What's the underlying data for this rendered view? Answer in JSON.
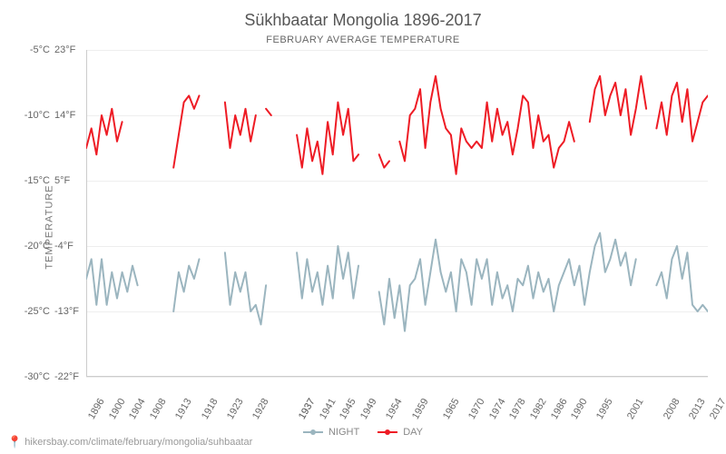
{
  "title": "Sükhbaatar Mongolia 1896-2017",
  "subtitle": "FEBRUARY AVERAGE TEMPERATURE",
  "y_axis_label": "TEMPERATURE",
  "attribution": "hikersbay.com/climate/february/mongolia/suhbaatar",
  "chart": {
    "type": "line",
    "background_color": "#ffffff",
    "grid_color": "#eeeeee",
    "axis_color": "#cccccc",
    "text_color": "#666666",
    "title_fontsize": 18,
    "subtitle_fontsize": 11,
    "tick_fontsize": 11,
    "ylim_c": [
      -30,
      -5
    ],
    "y_ticks": [
      {
        "c": "-5°C",
        "f": "23°F",
        "v": -5
      },
      {
        "c": "-10°C",
        "f": "14°F",
        "v": -10
      },
      {
        "c": "-15°C",
        "f": "5°F",
        "v": -15
      },
      {
        "c": "-20°C",
        "f": "-4°F",
        "v": -20
      },
      {
        "c": "-25°C",
        "f": "-13°F",
        "v": -25
      },
      {
        "c": "-30°C",
        "f": "-22°F",
        "v": -30
      }
    ],
    "x_ticks": [
      "1896",
      "1900",
      "1904",
      "1908",
      "1913",
      "1918",
      "1923",
      "1928",
      "1937",
      "1937",
      "1941",
      "1945",
      "1949",
      "1954",
      "1959",
      "1965",
      "1970",
      "1974",
      "1978",
      "1982",
      "1986",
      "1990",
      "1995",
      "2001",
      "2008",
      "2013",
      "2017"
    ],
    "series": {
      "night": {
        "label": "NIGHT",
        "color": "#9bb5bf",
        "line_width": 2,
        "marker": "circle",
        "segments": [
          [
            [
              1896,
              -22.5
            ],
            [
              1897,
              -21
            ],
            [
              1898,
              -24.5
            ],
            [
              1899,
              -21
            ],
            [
              1900,
              -24.5
            ],
            [
              1901,
              -22
            ],
            [
              1902,
              -24
            ],
            [
              1903,
              -22
            ],
            [
              1904,
              -23.5
            ],
            [
              1905,
              -21.5
            ],
            [
              1906,
              -23
            ]
          ],
          [
            [
              1913,
              -25
            ],
            [
              1914,
              -22
            ],
            [
              1915,
              -23.5
            ],
            [
              1916,
              -21.5
            ],
            [
              1917,
              -22.5
            ],
            [
              1918,
              -21
            ]
          ],
          [
            [
              1923,
              -20.5
            ],
            [
              1924,
              -24.5
            ],
            [
              1925,
              -22
            ],
            [
              1926,
              -23.5
            ],
            [
              1927,
              -22
            ],
            [
              1928,
              -25
            ],
            [
              1929,
              -24.5
            ],
            [
              1930,
              -26
            ],
            [
              1931,
              -23
            ]
          ],
          [
            [
              1937,
              -20.5
            ],
            [
              1938,
              -24
            ],
            [
              1939,
              -21
            ],
            [
              1940,
              -23.5
            ],
            [
              1941,
              -22
            ],
            [
              1942,
              -24.5
            ],
            [
              1943,
              -21.5
            ],
            [
              1944,
              -24
            ],
            [
              1945,
              -20
            ],
            [
              1946,
              -22.5
            ],
            [
              1947,
              -20.5
            ],
            [
              1948,
              -24
            ],
            [
              1949,
              -21.5
            ]
          ],
          [
            [
              1953,
              -23.5
            ],
            [
              1954,
              -26
            ],
            [
              1955,
              -22.5
            ],
            [
              1956,
              -25.5
            ],
            [
              1957,
              -23
            ],
            [
              1958,
              -26.5
            ],
            [
              1959,
              -23
            ],
            [
              1960,
              -22.5
            ],
            [
              1961,
              -21
            ],
            [
              1962,
              -24.5
            ],
            [
              1963,
              -22
            ],
            [
              1964,
              -19.5
            ],
            [
              1965,
              -22
            ],
            [
              1966,
              -23.5
            ],
            [
              1967,
              -22
            ],
            [
              1968,
              -25
            ],
            [
              1969,
              -21
            ],
            [
              1970,
              -22
            ],
            [
              1971,
              -24.5
            ],
            [
              1972,
              -21
            ],
            [
              1973,
              -22.5
            ],
            [
              1974,
              -21
            ],
            [
              1975,
              -24.5
            ],
            [
              1976,
              -22
            ],
            [
              1977,
              -24
            ],
            [
              1978,
              -23
            ],
            [
              1979,
              -25
            ],
            [
              1980,
              -22.5
            ],
            [
              1981,
              -23
            ],
            [
              1982,
              -21.5
            ],
            [
              1983,
              -24
            ],
            [
              1984,
              -22
            ],
            [
              1985,
              -23.5
            ],
            [
              1986,
              -22.5
            ],
            [
              1987,
              -25
            ],
            [
              1988,
              -23
            ],
            [
              1989,
              -22
            ],
            [
              1990,
              -21
            ],
            [
              1991,
              -23
            ],
            [
              1992,
              -21.5
            ],
            [
              1993,
              -24.5
            ],
            [
              1994,
              -22
            ],
            [
              1995,
              -20
            ],
            [
              1996,
              -19
            ],
            [
              1997,
              -22
            ],
            [
              1998,
              -21
            ],
            [
              1999,
              -19.5
            ],
            [
              2000,
              -21.5
            ],
            [
              2001,
              -20.5
            ],
            [
              2002,
              -23
            ],
            [
              2003,
              -21
            ]
          ],
          [
            [
              2007,
              -23
            ],
            [
              2008,
              -22
            ],
            [
              2009,
              -24
            ],
            [
              2010,
              -21
            ],
            [
              2011,
              -20
            ],
            [
              2012,
              -22.5
            ],
            [
              2013,
              -20.5
            ],
            [
              2014,
              -24.5
            ],
            [
              2015,
              -25
            ],
            [
              2016,
              -24.5
            ],
            [
              2017,
              -25
            ]
          ]
        ]
      },
      "day": {
        "label": "DAY",
        "color": "#ee1c25",
        "line_width": 2,
        "marker": "circle",
        "segments": [
          [
            [
              1896,
              -12.5
            ],
            [
              1897,
              -11
            ],
            [
              1898,
              -13
            ],
            [
              1899,
              -10
            ],
            [
              1900,
              -11.5
            ],
            [
              1901,
              -9.5
            ],
            [
              1902,
              -12
            ],
            [
              1903,
              -10.5
            ]
          ],
          [
            [
              1913,
              -14
            ],
            [
              1914,
              -11.5
            ],
            [
              1915,
              -9
            ],
            [
              1916,
              -8.5
            ],
            [
              1917,
              -9.5
            ],
            [
              1918,
              -8.5
            ]
          ],
          [
            [
              1923,
              -9
            ],
            [
              1924,
              -12.5
            ],
            [
              1925,
              -10
            ],
            [
              1926,
              -11.5
            ],
            [
              1927,
              -9.5
            ],
            [
              1928,
              -12
            ],
            [
              1929,
              -10
            ]
          ],
          [
            [
              1931,
              -9.5
            ],
            [
              1932,
              -10
            ]
          ],
          [
            [
              1937,
              -11.5
            ],
            [
              1938,
              -14
            ],
            [
              1939,
              -11
            ],
            [
              1940,
              -13.5
            ],
            [
              1941,
              -12
            ],
            [
              1942,
              -14.5
            ],
            [
              1943,
              -10.5
            ],
            [
              1944,
              -13
            ],
            [
              1945,
              -9
            ],
            [
              1946,
              -11.5
            ],
            [
              1947,
              -9.5
            ],
            [
              1948,
              -13.5
            ],
            [
              1949,
              -13
            ]
          ],
          [
            [
              1953,
              -13
            ],
            [
              1954,
              -14
            ],
            [
              1955,
              -13.5
            ]
          ],
          [
            [
              1957,
              -12
            ],
            [
              1958,
              -13.5
            ],
            [
              1959,
              -10
            ],
            [
              1960,
              -9.5
            ],
            [
              1961,
              -8
            ],
            [
              1962,
              -12.5
            ],
            [
              1963,
              -9
            ],
            [
              1964,
              -7
            ],
            [
              1965,
              -9.5
            ],
            [
              1966,
              -11
            ],
            [
              1967,
              -11.5
            ],
            [
              1968,
              -14.5
            ],
            [
              1969,
              -11
            ],
            [
              1970,
              -12
            ],
            [
              1971,
              -12.5
            ],
            [
              1972,
              -12
            ],
            [
              1973,
              -12.5
            ],
            [
              1974,
              -9
            ],
            [
              1975,
              -12
            ],
            [
              1976,
              -9.5
            ],
            [
              1977,
              -11.5
            ],
            [
              1978,
              -10.5
            ],
            [
              1979,
              -13
            ],
            [
              1980,
              -11
            ],
            [
              1981,
              -8.5
            ],
            [
              1982,
              -9
            ],
            [
              1983,
              -12.5
            ],
            [
              1984,
              -10
            ],
            [
              1985,
              -12
            ],
            [
              1986,
              -11.5
            ],
            [
              1987,
              -14
            ],
            [
              1988,
              -12.5
            ],
            [
              1989,
              -12
            ],
            [
              1990,
              -10.5
            ],
            [
              1991,
              -12
            ]
          ],
          [
            [
              1994,
              -10.5
            ],
            [
              1995,
              -8
            ],
            [
              1996,
              -7
            ],
            [
              1997,
              -10
            ],
            [
              1998,
              -8.5
            ],
            [
              1999,
              -7.5
            ],
            [
              2000,
              -10
            ],
            [
              2001,
              -8
            ],
            [
              2002,
              -11.5
            ],
            [
              2003,
              -9.5
            ],
            [
              2004,
              -7
            ],
            [
              2005,
              -9.5
            ]
          ],
          [
            [
              2007,
              -11
            ],
            [
              2008,
              -9
            ],
            [
              2009,
              -11.5
            ],
            [
              2010,
              -8.5
            ],
            [
              2011,
              -7.5
            ],
            [
              2012,
              -10.5
            ],
            [
              2013,
              -8
            ],
            [
              2014,
              -12
            ],
            [
              2015,
              -10.5
            ],
            [
              2016,
              -9
            ],
            [
              2017,
              -8.5
            ]
          ]
        ]
      }
    },
    "legend": {
      "position": "bottom",
      "items": [
        {
          "key": "night",
          "label": "NIGHT"
        },
        {
          "key": "day",
          "label": "DAY"
        }
      ]
    }
  }
}
